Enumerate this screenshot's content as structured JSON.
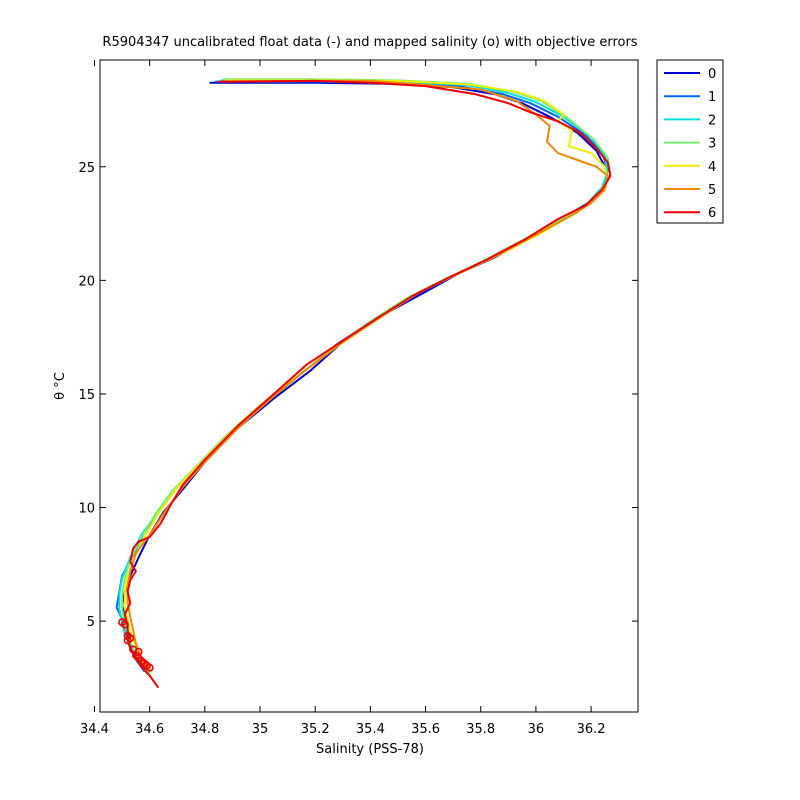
{
  "chart_data": {
    "type": "line",
    "title": "R5904347 uncalibrated float data (-) and mapped salinity (o) with objective errors",
    "xlabel": "Salinity (PSS-78)",
    "ylabel": "θ °C",
    "xlim": [
      34.42,
      36.37
    ],
    "ylim": [
      1.0,
      29.7
    ],
    "xticks": [
      34.4,
      34.6,
      34.8,
      35,
      35.2,
      35.4,
      35.6,
      35.8,
      36,
      36.2
    ],
    "xtick_labels": [
      "34.4",
      "34.6",
      "34.8",
      "35",
      "35.2",
      "35.4",
      "35.6",
      "35.8",
      "36",
      "36.2"
    ],
    "yticks": [
      5,
      10,
      15,
      20,
      25
    ],
    "ytick_labels": [
      "5",
      "10",
      "15",
      "20",
      "25"
    ],
    "grid": false,
    "legend": "outside-top-right",
    "series": [
      {
        "name": "0",
        "color": "#0000cc",
        "points": [
          [
            34.82,
            28.7
          ],
          [
            35.2,
            28.7
          ],
          [
            35.5,
            28.65
          ],
          [
            35.7,
            28.5
          ],
          [
            35.85,
            28.2
          ],
          [
            35.95,
            27.8
          ],
          [
            36.05,
            27.2
          ],
          [
            36.15,
            26.5
          ],
          [
            36.22,
            25.7
          ],
          [
            36.25,
            25.0
          ],
          [
            36.26,
            24.4
          ],
          [
            36.22,
            23.7
          ],
          [
            36.15,
            23.0
          ],
          [
            36.0,
            22.0
          ],
          [
            35.85,
            21.0
          ],
          [
            35.72,
            20.3
          ],
          [
            35.6,
            19.5
          ],
          [
            35.45,
            18.5
          ],
          [
            35.3,
            17.3
          ],
          [
            35.18,
            16.0
          ],
          [
            35.05,
            14.8
          ],
          [
            34.92,
            13.5
          ],
          [
            34.8,
            12.0
          ],
          [
            34.72,
            10.8
          ],
          [
            34.65,
            9.8
          ],
          [
            34.6,
            8.8
          ],
          [
            34.56,
            7.8
          ],
          [
            34.53,
            7.0
          ],
          [
            34.51,
            6.3
          ],
          [
            34.5,
            5.7
          ],
          [
            34.51,
            5.2
          ],
          [
            34.52,
            4.6
          ],
          [
            34.53,
            4.0
          ],
          [
            34.55,
            3.4
          ],
          [
            34.58,
            2.9
          ]
        ]
      },
      {
        "name": "1",
        "color": "#0066ee",
        "points": [
          [
            34.84,
            28.75
          ],
          [
            35.2,
            28.75
          ],
          [
            35.5,
            28.7
          ],
          [
            35.72,
            28.55
          ],
          [
            35.88,
            28.2
          ],
          [
            35.98,
            27.8
          ],
          [
            36.08,
            27.2
          ],
          [
            36.18,
            26.4
          ],
          [
            36.24,
            25.6
          ],
          [
            36.26,
            24.9
          ],
          [
            36.25,
            24.2
          ],
          [
            36.2,
            23.5
          ],
          [
            36.12,
            22.9
          ],
          [
            35.98,
            21.9
          ],
          [
            35.84,
            21.0
          ],
          [
            35.7,
            20.2
          ],
          [
            35.57,
            19.4
          ],
          [
            35.43,
            18.4
          ],
          [
            35.28,
            17.2
          ],
          [
            35.16,
            16.0
          ],
          [
            35.03,
            14.7
          ],
          [
            34.9,
            13.4
          ],
          [
            34.78,
            11.9
          ],
          [
            34.7,
            10.9
          ],
          [
            34.64,
            9.9
          ],
          [
            34.58,
            8.9
          ],
          [
            34.54,
            7.9
          ],
          [
            34.5,
            7.0
          ],
          [
            34.49,
            6.3
          ],
          [
            34.48,
            5.6
          ],
          [
            34.5,
            5.1
          ],
          [
            34.51,
            4.5
          ],
          [
            34.53,
            3.9
          ],
          [
            34.55,
            3.3
          ],
          [
            34.58,
            2.8
          ]
        ]
      },
      {
        "name": "2",
        "color": "#00dddd",
        "points": [
          [
            34.86,
            28.8
          ],
          [
            35.2,
            28.8
          ],
          [
            35.5,
            28.75
          ],
          [
            35.75,
            28.6
          ],
          [
            35.9,
            28.25
          ],
          [
            36.0,
            27.85
          ],
          [
            36.1,
            27.2
          ],
          [
            36.2,
            26.3
          ],
          [
            36.25,
            25.5
          ],
          [
            36.26,
            24.8
          ],
          [
            36.24,
            24.1
          ],
          [
            36.18,
            23.3
          ],
          [
            36.1,
            22.7
          ],
          [
            35.96,
            21.8
          ],
          [
            35.82,
            20.9
          ],
          [
            35.68,
            20.1
          ],
          [
            35.55,
            19.3
          ],
          [
            35.42,
            18.3
          ],
          [
            35.26,
            17.0
          ],
          [
            35.14,
            15.8
          ],
          [
            35.02,
            14.6
          ],
          [
            34.89,
            13.3
          ],
          [
            34.77,
            11.8
          ],
          [
            34.69,
            10.8
          ],
          [
            34.63,
            9.8
          ],
          [
            34.57,
            8.8
          ],
          [
            34.53,
            7.8
          ],
          [
            34.5,
            6.9
          ],
          [
            34.49,
            6.2
          ],
          [
            34.49,
            5.5
          ],
          [
            34.5,
            5.0
          ],
          [
            34.51,
            4.4
          ],
          [
            34.53,
            3.8
          ],
          [
            34.56,
            3.2
          ],
          [
            34.59,
            2.7
          ]
        ]
      },
      {
        "name": "3",
        "color": "#77ee77",
        "points": [
          [
            34.87,
            28.85
          ],
          [
            35.2,
            28.85
          ],
          [
            35.5,
            28.8
          ],
          [
            35.76,
            28.65
          ],
          [
            35.92,
            28.3
          ],
          [
            36.02,
            27.9
          ],
          [
            36.12,
            27.1
          ],
          [
            36.21,
            26.2
          ],
          [
            36.26,
            25.4
          ],
          [
            36.27,
            24.7
          ],
          [
            36.24,
            24.0
          ],
          [
            36.17,
            23.2
          ],
          [
            36.08,
            22.6
          ],
          [
            35.94,
            21.7
          ],
          [
            35.8,
            20.8
          ],
          [
            35.66,
            20.0
          ],
          [
            35.53,
            19.2
          ],
          [
            35.4,
            18.2
          ],
          [
            35.25,
            16.9
          ],
          [
            35.13,
            15.7
          ],
          [
            35.0,
            14.5
          ],
          [
            34.88,
            13.2
          ],
          [
            34.76,
            11.7
          ],
          [
            34.68,
            10.7
          ],
          [
            34.62,
            9.7
          ],
          [
            34.57,
            8.7
          ],
          [
            34.53,
            7.7
          ],
          [
            34.51,
            6.9
          ],
          [
            34.5,
            6.2
          ],
          [
            34.5,
            5.5
          ],
          [
            34.51,
            5.0
          ],
          [
            34.52,
            4.4
          ],
          [
            34.54,
            3.8
          ],
          [
            34.57,
            3.2
          ],
          [
            34.6,
            2.7
          ]
        ]
      },
      {
        "name": "4",
        "color": "#eeee00",
        "points": [
          [
            34.88,
            28.8
          ],
          [
            35.2,
            28.8
          ],
          [
            35.5,
            28.78
          ],
          [
            35.76,
            28.62
          ],
          [
            35.93,
            28.3
          ],
          [
            36.03,
            27.9
          ],
          [
            36.1,
            27.3
          ],
          [
            36.08,
            27.0
          ],
          [
            36.13,
            26.6
          ],
          [
            36.12,
            25.9
          ],
          [
            36.2,
            25.6
          ],
          [
            36.25,
            25.0
          ],
          [
            36.26,
            24.4
          ],
          [
            36.22,
            23.7
          ],
          [
            36.15,
            23.0
          ],
          [
            36.02,
            22.1
          ],
          [
            35.88,
            21.2
          ],
          [
            35.72,
            20.3
          ],
          [
            35.58,
            19.5
          ],
          [
            35.44,
            18.4
          ],
          [
            35.28,
            17.1
          ],
          [
            35.15,
            15.9
          ],
          [
            35.02,
            14.7
          ],
          [
            34.9,
            13.4
          ],
          [
            34.78,
            11.9
          ],
          [
            34.7,
            10.9
          ],
          [
            34.64,
            9.9
          ],
          [
            34.59,
            8.9
          ],
          [
            34.55,
            7.9
          ],
          [
            34.52,
            7.0
          ],
          [
            34.51,
            6.3
          ],
          [
            34.51,
            5.6
          ],
          [
            34.52,
            5.1
          ],
          [
            34.53,
            4.5
          ],
          [
            34.55,
            3.9
          ],
          [
            34.57,
            3.3
          ],
          [
            34.6,
            2.8
          ]
        ]
      },
      {
        "name": "5",
        "color": "#ee8800",
        "points": [
          [
            34.87,
            28.75
          ],
          [
            35.2,
            28.78
          ],
          [
            35.4,
            28.78
          ],
          [
            35.6,
            28.6
          ],
          [
            35.8,
            28.4
          ],
          [
            35.93,
            27.9
          ],
          [
            36.0,
            27.3
          ],
          [
            36.05,
            26.8
          ],
          [
            36.04,
            26.1
          ],
          [
            36.08,
            25.6
          ],
          [
            36.15,
            25.3
          ],
          [
            36.22,
            25.0
          ],
          [
            36.26,
            24.6
          ],
          [
            36.25,
            24.0
          ],
          [
            36.2,
            23.4
          ],
          [
            36.12,
            22.8
          ],
          [
            36.0,
            22.0
          ],
          [
            35.86,
            21.1
          ],
          [
            35.72,
            20.3
          ],
          [
            35.58,
            19.5
          ],
          [
            35.44,
            18.4
          ],
          [
            35.29,
            17.2
          ],
          [
            35.16,
            16.0
          ],
          [
            35.04,
            14.8
          ],
          [
            34.92,
            13.5
          ],
          [
            34.8,
            12.0
          ],
          [
            34.72,
            10.9
          ],
          [
            34.66,
            9.9
          ],
          [
            34.6,
            8.8
          ],
          [
            34.55,
            8.0
          ],
          [
            34.53,
            7.2
          ],
          [
            34.52,
            6.5
          ],
          [
            34.52,
            5.8
          ],
          [
            34.53,
            5.2
          ],
          [
            34.54,
            4.6
          ],
          [
            34.55,
            4.0
          ],
          [
            34.57,
            3.4
          ],
          [
            34.6,
            2.9
          ]
        ]
      },
      {
        "name": "6",
        "color": "#ee0000",
        "points": [
          [
            34.85,
            28.75
          ],
          [
            35.2,
            28.78
          ],
          [
            35.4,
            28.7
          ],
          [
            35.6,
            28.55
          ],
          [
            35.78,
            28.2
          ],
          [
            35.9,
            27.8
          ],
          [
            35.98,
            27.4
          ],
          [
            36.08,
            27.0
          ],
          [
            36.16,
            26.5
          ],
          [
            36.22,
            25.8
          ],
          [
            36.26,
            25.2
          ],
          [
            36.27,
            24.6
          ],
          [
            36.24,
            24.0
          ],
          [
            36.18,
            23.3
          ],
          [
            36.08,
            22.7
          ],
          [
            35.96,
            21.8
          ],
          [
            35.82,
            20.9
          ],
          [
            35.68,
            20.1
          ],
          [
            35.55,
            19.3
          ],
          [
            35.42,
            18.3
          ],
          [
            35.27,
            17.1
          ],
          [
            35.17,
            16.3
          ],
          [
            35.05,
            15.0
          ],
          [
            34.92,
            13.6
          ],
          [
            34.8,
            12.1
          ],
          [
            34.72,
            11.0
          ],
          [
            34.68,
            10.2
          ],
          [
            34.64,
            9.3
          ],
          [
            34.6,
            8.7
          ],
          [
            34.56,
            8.5
          ],
          [
            34.54,
            8.2
          ],
          [
            34.53,
            7.6
          ],
          [
            34.55,
            7.2
          ],
          [
            34.53,
            6.8
          ],
          [
            34.52,
            6.3
          ],
          [
            34.53,
            5.8
          ],
          [
            34.51,
            5.3
          ],
          [
            34.52,
            4.8
          ],
          [
            34.52,
            4.2
          ],
          [
            34.53,
            3.8
          ],
          [
            34.55,
            3.4
          ],
          [
            34.57,
            3.0
          ],
          [
            34.6,
            2.6
          ],
          [
            34.63,
            2.1
          ]
        ]
      }
    ],
    "mapped_points": {
      "color": "#ee0000",
      "points": [
        [
          34.5,
          4.95
        ],
        [
          34.51,
          4.85
        ],
        [
          34.52,
          4.35
        ],
        [
          34.53,
          4.25
        ],
        [
          34.52,
          4.15
        ],
        [
          34.54,
          3.75
        ],
        [
          34.56,
          3.65
        ],
        [
          34.55,
          3.5
        ],
        [
          34.56,
          3.38
        ],
        [
          34.57,
          3.25
        ],
        [
          34.58,
          3.15
        ],
        [
          34.59,
          3.05
        ],
        [
          34.6,
          2.95
        ]
      ]
    }
  }
}
